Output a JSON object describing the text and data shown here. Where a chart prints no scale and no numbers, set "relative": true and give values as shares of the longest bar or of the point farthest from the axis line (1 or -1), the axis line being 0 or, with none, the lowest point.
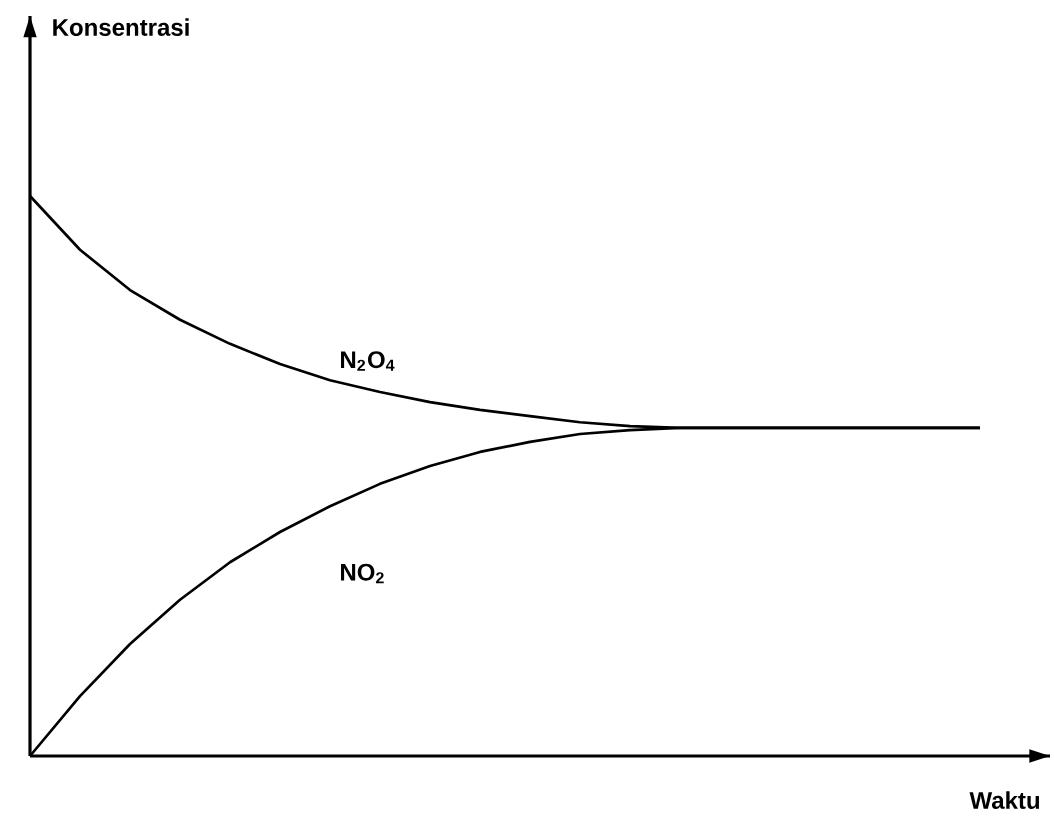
{
  "chart_data": {
    "type": "line",
    "relative": true,
    "xlabel": "Waktu",
    "annotations": [
      "Konsentrasi"
    ],
    "categories": [
      null,
      null,
      null,
      null,
      null,
      null,
      null,
      null,
      null,
      null,
      null,
      null,
      null,
      null,
      null,
      null,
      null,
      null,
      null,
      null
    ],
    "series": [
      {
        "name": "N$_{2}$O$_{4}$",
        "color": "#000000",
        "values": [
          1.0,
          0.904,
          0.832,
          0.779,
          0.736,
          0.7,
          0.671,
          0.65,
          0.632,
          0.618,
          0.607,
          0.596,
          0.589,
          0.586,
          0.586,
          0.586,
          0.586,
          0.586,
          0.586,
          0.586
        ]
      },
      {
        "name": "NO$_{2}$",
        "color": "#000000",
        "values": [
          0.0,
          0.107,
          0.2,
          0.279,
          0.346,
          0.4,
          0.446,
          0.486,
          0.518,
          0.543,
          0.561,
          0.575,
          0.582,
          0.586,
          0.586,
          0.586,
          0.586,
          0.586,
          0.586,
          0.586
        ]
      }
    ]
  }
}
